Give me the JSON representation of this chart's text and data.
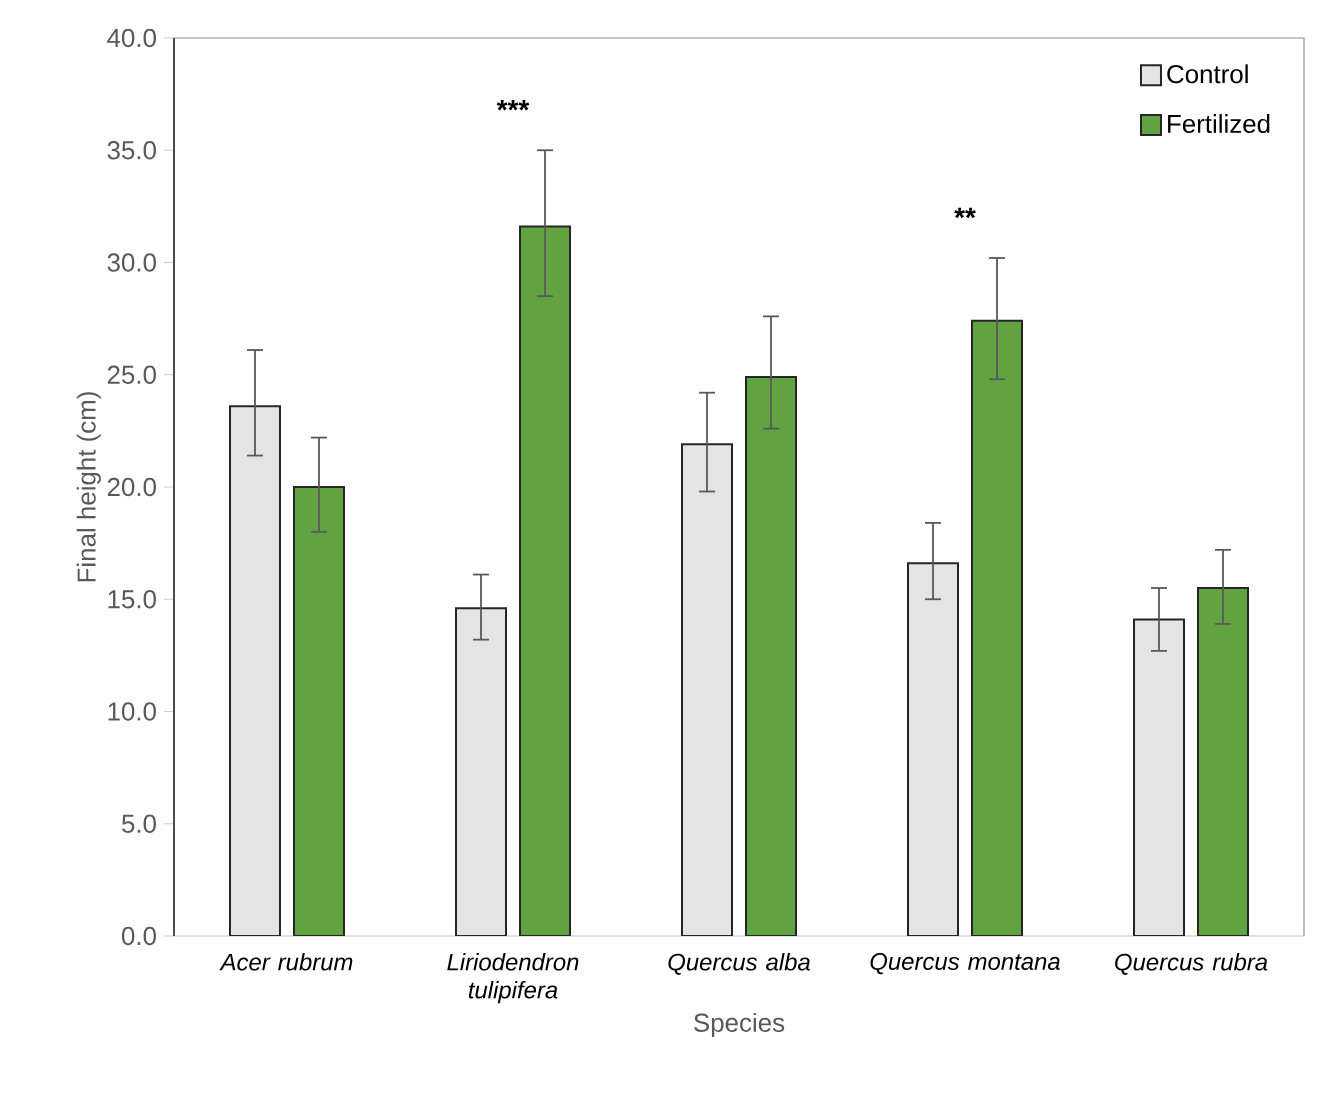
{
  "chart_data": {
    "type": "bar",
    "xlabel": "Species",
    "ylabel": "Final height (cm)",
    "categories": [
      "Acer rubrum",
      "Liriodendron tulipifera",
      "Quercus alba",
      "Quercus montana",
      "Quercus rubra"
    ],
    "series": [
      {
        "name": "Control",
        "color": "#e4e4e4",
        "values": [
          23.6,
          14.6,
          21.9,
          16.6,
          14.1
        ],
        "errors": [
          [
            21.4,
            26.1
          ],
          [
            13.2,
            16.1
          ],
          [
            19.8,
            24.2
          ],
          [
            15.0,
            18.4
          ],
          [
            12.7,
            15.5
          ]
        ]
      },
      {
        "name": "Fertilized",
        "color": "#62a341",
        "values": [
          20.0,
          31.6,
          24.9,
          27.4,
          15.5
        ],
        "errors": [
          [
            18.0,
            22.2
          ],
          [
            28.5,
            35.0
          ],
          [
            22.6,
            27.6
          ],
          [
            24.8,
            30.2
          ],
          [
            13.9,
            17.2
          ]
        ]
      }
    ],
    "ylim": [
      0,
      40
    ],
    "yticks": [
      {
        "value": 0,
        "label": "0.0"
      },
      {
        "value": 5,
        "label": "5.0"
      },
      {
        "value": 10,
        "label": "10.0"
      },
      {
        "value": 15,
        "label": "15.0"
      },
      {
        "value": 20,
        "label": "20.0"
      },
      {
        "value": 25,
        "label": "25.0"
      },
      {
        "value": 30,
        "label": "30.0"
      },
      {
        "value": 35,
        "label": "35.0"
      },
      {
        "value": 40,
        "label": "40.0"
      }
    ],
    "annotations": [
      "***",
      "**"
    ],
    "grid": false,
    "legend": "top right"
  }
}
